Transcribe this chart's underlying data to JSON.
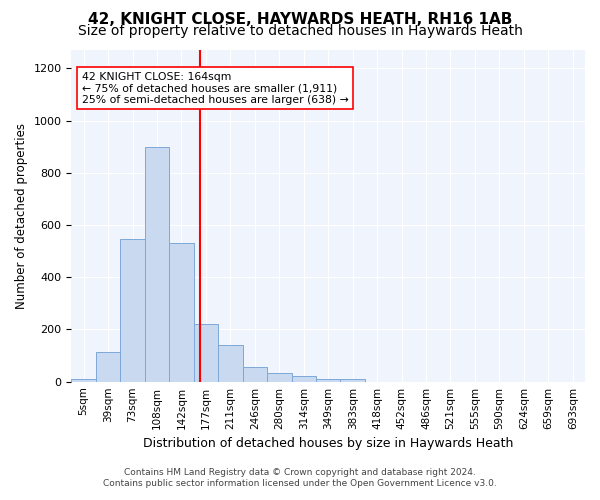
{
  "title1": "42, KNIGHT CLOSE, HAYWARDS HEATH, RH16 1AB",
  "title2": "Size of property relative to detached houses in Haywards Heath",
  "xlabel": "Distribution of detached houses by size in Haywards Heath",
  "ylabel": "Number of detached properties",
  "bar_labels": [
    "5sqm",
    "39sqm",
    "73sqm",
    "108sqm",
    "142sqm",
    "177sqm",
    "211sqm",
    "246sqm",
    "280sqm",
    "314sqm",
    "349sqm",
    "383sqm",
    "418sqm",
    "452sqm",
    "486sqm",
    "521sqm",
    "555sqm",
    "590sqm",
    "624sqm",
    "659sqm",
    "693sqm"
  ],
  "bar_values": [
    10,
    115,
    545,
    900,
    530,
    220,
    140,
    55,
    35,
    20,
    10,
    10,
    0,
    0,
    0,
    0,
    0,
    0,
    0,
    0,
    0
  ],
  "bar_color": "#c9d9f0",
  "bar_edge_color": "#7da8d8",
  "vline_x": 4.74,
  "vline_color": "red",
  "annotation_text": "42 KNIGHT CLOSE: 164sqm\n← 75% of detached houses are smaller (1,911)\n25% of semi-detached houses are larger (638) →",
  "annotation_box_color": "white",
  "annotation_box_edge": "red",
  "ylim": [
    0,
    1270
  ],
  "yticks": [
    0,
    200,
    400,
    600,
    800,
    1000,
    1200
  ],
  "footer1": "Contains HM Land Registry data © Crown copyright and database right 2024.",
  "footer2": "Contains public sector information licensed under the Open Government Licence v3.0.",
  "bg_color": "#f0f4fc",
  "title1_fontsize": 11,
  "title2_fontsize": 10
}
